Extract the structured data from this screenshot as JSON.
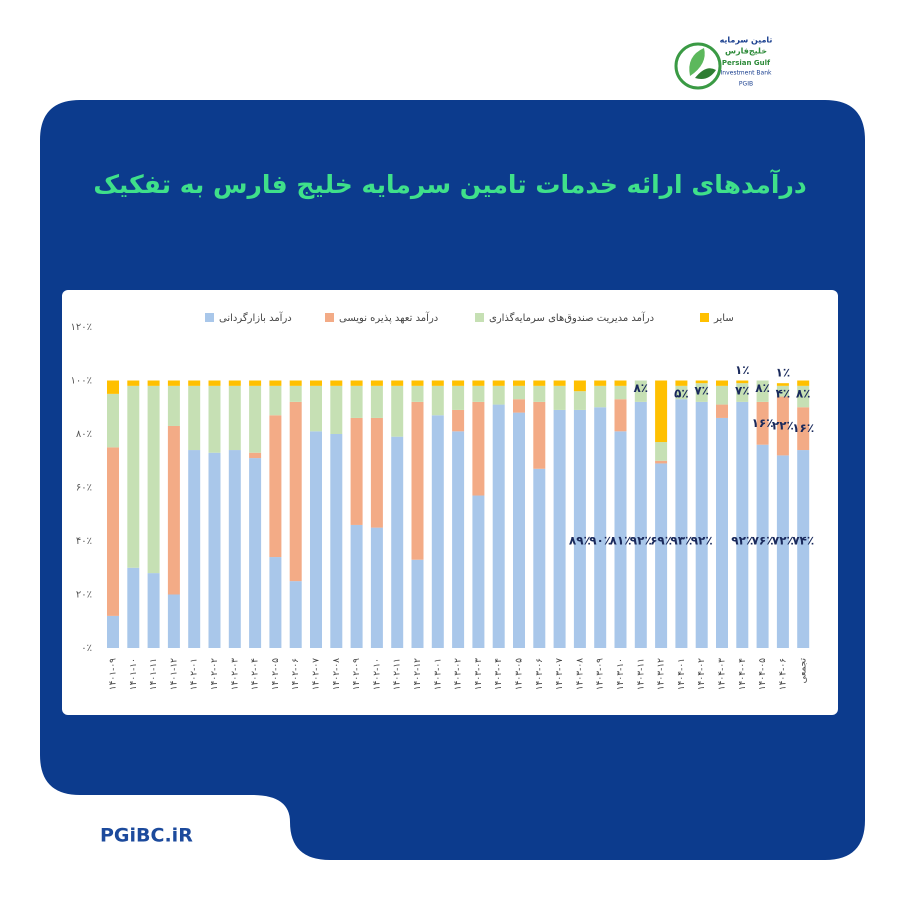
{
  "chart_data": {
    "type": "stacked_bar",
    "title": "درآمدهای ارائه خدمات تامین سرمایه خلیج فارس به تفکیک",
    "categories": [
      "۱۴۰۱-۰۹",
      "۱۴۰۱-۱۰",
      "۱۴۰۱-۱۱",
      "۱۴۰۱-۱۲",
      "۱۴۰۲-۰۱",
      "۱۴۰۲-۰۲",
      "۱۴۰۲-۰۳",
      "۱۴۰۲-۰۴",
      "۱۴۰۲-۰۵",
      "۱۴۰۲-۰۶",
      "۱۴۰۲-۰۷",
      "۱۴۰۲-۰۸",
      "۱۴۰۲-۰۹",
      "۱۴۰۲-۱۰",
      "۱۴۰۲-۱۱",
      "۱۴۰۲-۱۲",
      "۱۴۰۳-۰۱",
      "۱۴۰۳-۰۲",
      "۱۴۰۳-۰۳",
      "۱۴۰۳-۰۴",
      "۱۴۰۳-۰۵",
      "۱۴۰۳-۰۶",
      "۱۴۰۳-۰۷",
      "۱۴۰۳-۰۸",
      "۱۴۰۳-۰۹",
      "۱۴۰۳-۱۰",
      "۱۴۰۳-۱۱",
      "۱۴۰۳-۱۲",
      "۱۴۰۴-۰۱",
      "۱۴۰۴-۰۲",
      "۱۴۰۴-۰۳",
      "۱۴۰۴-۰۴",
      "۱۴۰۴-۰۵",
      "۱۴۰۴-۰۶",
      "تجمعی"
    ],
    "series": [
      {
        "name": "درآمد بازارگردانی",
        "color": "#a9c7ea",
        "values": [
          12,
          30,
          28,
          20,
          74,
          73,
          74,
          71,
          34,
          25,
          81,
          80,
          46,
          45,
          79,
          33,
          87,
          81,
          57,
          91,
          88,
          67,
          89,
          89,
          90,
          81,
          92,
          69,
          93,
          92,
          86,
          92,
          76,
          72,
          74
        ],
        "value_labels": [
          null,
          null,
          null,
          null,
          null,
          null,
          null,
          null,
          null,
          null,
          null,
          null,
          null,
          null,
          null,
          null,
          null,
          null,
          null,
          null,
          null,
          null,
          null,
          "۸۹٪",
          "۹۰٪",
          "۸۱٪",
          "۹۲٪",
          "۶۹٪",
          "۹۳٪",
          "۹۲٪",
          null,
          "۹۲٪",
          "۷۶٪",
          "۷۲٪",
          "۷۴٪"
        ]
      },
      {
        "name": "درآمد تعهد پذیره نویسی",
        "color": "#f3ab86",
        "values": [
          63,
          0,
          0,
          63,
          0,
          0,
          0,
          2,
          53,
          67,
          0,
          0,
          40,
          41,
          0,
          59,
          0,
          8,
          35,
          0,
          5,
          25,
          0,
          0,
          0,
          12,
          0,
          1,
          0,
          0,
          5,
          0,
          16,
          22,
          16
        ],
        "value_labels": [
          null,
          null,
          null,
          null,
          null,
          null,
          null,
          null,
          null,
          null,
          null,
          null,
          null,
          null,
          null,
          null,
          null,
          null,
          null,
          null,
          null,
          null,
          null,
          null,
          null,
          null,
          null,
          null,
          null,
          null,
          null,
          null,
          "۱۶٪",
          "۲۲٪",
          "۱۶٪"
        ]
      },
      {
        "name": "درآمد مدیریت صندوق‌های سرمایه‌گذاری",
        "color": "#c6e0b4",
        "values": [
          20,
          68,
          70,
          15,
          24,
          25,
          24,
          25,
          11,
          6,
          17,
          18,
          12,
          12,
          19,
          6,
          11,
          9,
          6,
          7,
          5,
          6,
          9,
          7,
          8,
          5,
          8,
          7,
          5,
          7,
          7,
          7,
          8,
          4,
          8
        ],
        "value_labels": [
          null,
          null,
          null,
          null,
          null,
          null,
          null,
          null,
          null,
          null,
          null,
          null,
          null,
          null,
          null,
          null,
          null,
          null,
          null,
          null,
          null,
          null,
          null,
          null,
          null,
          null,
          "۸٪",
          null,
          "۵٪",
          "۷٪",
          null,
          "۷٪",
          "۸٪",
          "۴٪",
          "۸٪"
        ]
      },
      {
        "name": "سایر",
        "color": "#ffc000",
        "values": [
          5,
          2,
          2,
          2,
          2,
          2,
          2,
          2,
          2,
          2,
          2,
          2,
          2,
          2,
          2,
          2,
          2,
          2,
          2,
          2,
          2,
          2,
          2,
          4,
          2,
          2,
          0,
          23,
          2,
          1,
          2,
          1,
          0,
          1,
          2
        ],
        "value_labels": [
          null,
          null,
          null,
          null,
          null,
          null,
          null,
          null,
          null,
          null,
          null,
          null,
          null,
          null,
          null,
          null,
          null,
          null,
          null,
          null,
          null,
          null,
          null,
          null,
          null,
          null,
          null,
          null,
          null,
          null,
          null,
          "۱٪",
          null,
          "۱٪",
          null
        ]
      }
    ],
    "ylim": [
      0,
      120
    ],
    "yticks": [
      {
        "value": 0,
        "label": "۰٪"
      },
      {
        "value": 20,
        "label": "۲۰٪"
      },
      {
        "value": 40,
        "label": "۴۰٪"
      },
      {
        "value": 60,
        "label": "۶۰٪"
      },
      {
        "value": 80,
        "label": "۸۰٪"
      },
      {
        "value": 100,
        "label": "۱۰۰٪"
      },
      {
        "value": 120,
        "label": "۱۲۰٪"
      }
    ],
    "grid": false
  },
  "logo": {
    "line1": "تامین سرمایه",
    "line2": "خلیج‌فارس",
    "line3": "Persian Gulf",
    "line4": "Investment Bank",
    "line5": "PGIB"
  },
  "footer": {
    "site": "PGiBC.iR"
  }
}
